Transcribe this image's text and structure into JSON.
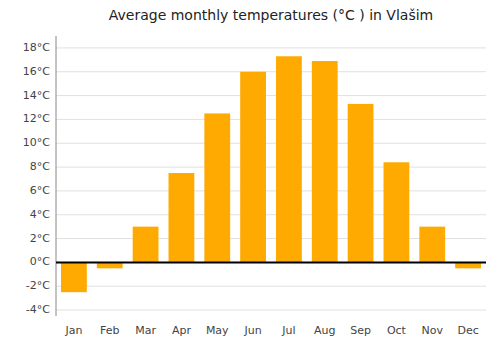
{
  "chart_data": {
    "type": "bar",
    "title": "Average monthly temperatures (°C ) in Vlašim",
    "categories": [
      "Jan",
      "Feb",
      "Mar",
      "Apr",
      "May",
      "Jun",
      "Jul",
      "Aug",
      "Sep",
      "Oct",
      "Nov",
      "Dec"
    ],
    "values": [
      -2.5,
      -0.5,
      3.0,
      7.5,
      12.5,
      16.0,
      17.3,
      16.9,
      13.3,
      8.4,
      3.0,
      -0.5
    ],
    "color": "#FFAA00",
    "ylim": [
      -4.5,
      19
    ],
    "yticks": [
      {
        "value": -4,
        "label": "-4°C"
      },
      {
        "value": -2,
        "label": "-2°C"
      },
      {
        "value": 0,
        "label": "0°C"
      },
      {
        "value": 2,
        "label": "2°C"
      },
      {
        "value": 4,
        "label": "4°C"
      },
      {
        "value": 6,
        "label": "6°C"
      },
      {
        "value": 8,
        "label": "8°C"
      },
      {
        "value": 10,
        "label": "10°C"
      },
      {
        "value": 12,
        "label": "12°C"
      },
      {
        "value": 14,
        "label": "14°C"
      },
      {
        "value": 16,
        "label": "16°C"
      },
      {
        "value": 18,
        "label": "18°C"
      }
    ],
    "grid": true
  }
}
